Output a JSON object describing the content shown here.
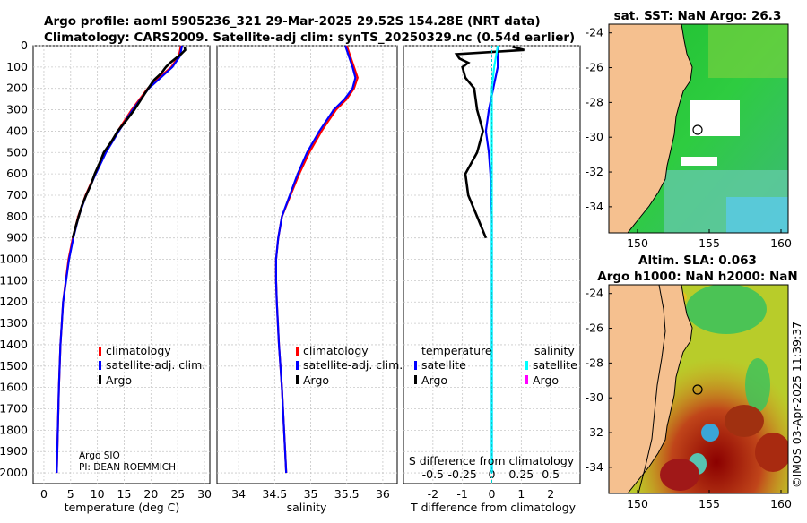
{
  "title": {
    "line1": "Argo profile: aoml 5905236_321 29-Mar-2025 29.52S 154.28E (NRT data)",
    "line2": "Climatology: CARS2009. Satellite-adj clim: synTS_20250329.nc (0.54d earlier)"
  },
  "depth_ticks": [
    "0",
    "100",
    "200",
    "300",
    "400",
    "500",
    "600",
    "700",
    "800",
    "900",
    "1000",
    "1100",
    "1200",
    "1300",
    "1400",
    "1500",
    "1600",
    "1700",
    "1800",
    "1900",
    "2000"
  ],
  "colors": {
    "climatology": "#ff0000",
    "satellite_adj": "#0000ff",
    "argo": "#000000",
    "sat_sal": "#00ffff",
    "argo_sal": "#ff00ff",
    "land": "#f5c08f"
  },
  "chart_data": [
    {
      "type": "line",
      "name": "temperature",
      "xlabel": "temperature (deg C)",
      "xlim": [
        -2,
        31
      ],
      "x_ticks": [
        0,
        5,
        10,
        15,
        20,
        25,
        30
      ],
      "ylim": [
        2050,
        0
      ],
      "legend": [
        "climatology",
        "satellite-adj. clim.",
        "Argo"
      ],
      "legend_position": "lower-right",
      "annotations": [
        "Argo SIO",
        "PI: DEAN ROEMMICH"
      ],
      "series": [
        {
          "name": "climatology",
          "depth": [
            0,
            50,
            100,
            150,
            200,
            300,
            400,
            500,
            600,
            700,
            800,
            900,
            1000,
            1200,
            1400,
            1600,
            1800,
            2000
          ],
          "values": [
            25.6,
            25.2,
            23.8,
            21.5,
            19.4,
            16.4,
            13.8,
            11.4,
            9.6,
            7.8,
            6.4,
            5.4,
            4.6,
            3.6,
            3.1,
            2.8,
            2.6,
            2.4
          ]
        },
        {
          "name": "satellite-adj. clim.",
          "depth": [
            0,
            50,
            100,
            150,
            200,
            300,
            400,
            500,
            600,
            700,
            800,
            900,
            1000,
            1200,
            1400,
            1600,
            1800,
            2000
          ],
          "values": [
            25.8,
            25.4,
            24.0,
            21.8,
            19.6,
            16.6,
            14.0,
            11.6,
            9.7,
            7.9,
            6.5,
            5.5,
            4.7,
            3.6,
            3.1,
            2.8,
            2.6,
            2.4
          ]
        },
        {
          "name": "Argo",
          "depth": [
            5,
            20,
            40,
            60,
            80,
            100,
            130,
            160,
            200,
            250,
            300,
            350,
            400,
            450,
            500,
            550,
            600,
            650,
            700,
            750,
            800,
            850,
            900
          ],
          "values": [
            26.3,
            26.4,
            25.6,
            24.6,
            23.6,
            22.8,
            21.9,
            20.6,
            19.5,
            18.2,
            16.9,
            15.4,
            13.8,
            12.6,
            11.2,
            10.4,
            9.5,
            8.8,
            7.9,
            7.1,
            6.5,
            5.9,
            5.4
          ]
        }
      ]
    },
    {
      "type": "line",
      "name": "salinity",
      "xlabel": "salinity",
      "xlim": [
        33.7,
        36.2
      ],
      "x_ticks": [
        34,
        34.5,
        35,
        35.5,
        36
      ],
      "ylim": [
        2050,
        0
      ],
      "legend": [
        "climatology",
        "satellite-adj. clim.",
        "Argo"
      ],
      "legend_position": "lower-right",
      "series": [
        {
          "name": "climatology",
          "depth": [
            0,
            50,
            100,
            150,
            200,
            250,
            300,
            400,
            500,
            600,
            700,
            800,
            900,
            1000,
            1100,
            1200,
            1400,
            1600,
            1800,
            2000
          ],
          "values": [
            35.5,
            35.55,
            35.6,
            35.65,
            35.6,
            35.5,
            35.35,
            35.15,
            34.98,
            34.84,
            34.72,
            34.6,
            34.55,
            34.52,
            34.52,
            34.53,
            34.56,
            34.6,
            34.63,
            34.66
          ]
        },
        {
          "name": "satellite-adj. clim.",
          "depth": [
            0,
            50,
            100,
            150,
            200,
            250,
            300,
            400,
            500,
            600,
            700,
            800,
            900,
            1000,
            1100,
            1200,
            1400,
            1600,
            1800,
            2000
          ],
          "values": [
            35.48,
            35.53,
            35.58,
            35.62,
            35.58,
            35.47,
            35.32,
            35.12,
            34.95,
            34.82,
            34.71,
            34.6,
            34.55,
            34.52,
            34.52,
            34.53,
            34.56,
            34.6,
            34.63,
            34.66
          ]
        }
      ]
    },
    {
      "type": "line",
      "name": "difference from climatology",
      "xlabel": "T difference from climatology",
      "x2label": "S difference from climatology",
      "xlim": [
        -3,
        3
      ],
      "x_ticks": [
        -2,
        -1,
        0,
        1,
        2
      ],
      "s_ticks": [
        "-0.5",
        "-0.25",
        "0",
        "0.25",
        "0.5"
      ],
      "s_xlim": [
        -0.75,
        0.75
      ],
      "ylim": [
        2050,
        0
      ],
      "legend_groups": {
        "temperature": [
          "satellite",
          "Argo"
        ],
        "salinity": [
          "satellite",
          "Argo"
        ]
      },
      "series": [
        {
          "name": "temperature satellite",
          "depth": [
            0,
            100,
            200,
            300,
            400,
            500,
            600,
            800,
            1000,
            1500,
            2000
          ],
          "values": [
            0.2,
            0.2,
            0.05,
            -0.1,
            -0.2,
            -0.1,
            -0.05,
            0,
            0,
            0,
            0
          ]
        },
        {
          "name": "temperature Argo",
          "depth": [
            5,
            20,
            40,
            60,
            80,
            100,
            150,
            200,
            300,
            400,
            500,
            600,
            700,
            800,
            900
          ],
          "values": [
            0.7,
            1.1,
            -1.2,
            -1.1,
            -0.8,
            -1.0,
            -0.9,
            -0.6,
            -0.5,
            -0.3,
            -0.5,
            -0.9,
            -0.8,
            -0.5,
            -0.2
          ]
        },
        {
          "name": "salinity satellite",
          "depth": [
            0,
            100,
            200,
            500,
            1000,
            1500,
            2000
          ],
          "values": [
            0.05,
            0.02,
            0.0,
            0.0,
            0.0,
            0.0,
            0.0
          ]
        }
      ]
    },
    {
      "type": "heatmap",
      "name": "satellite SST map",
      "title": "sat. SST: NaN Argo: 26.3",
      "x_ticks": [
        150,
        155,
        160
      ],
      "y_ticks": [
        -24,
        -26,
        -28,
        -30,
        -32,
        -34
      ],
      "xlim": [
        148,
        160.5
      ],
      "ylim": [
        -35.5,
        -23.5
      ],
      "argo_position": {
        "lon": 154.28,
        "lat": -29.52
      }
    },
    {
      "type": "heatmap",
      "name": "altimetry SLA map",
      "title_line1": "Altim. SLA: 0.063",
      "title_line2": "Argo h1000: NaN h2000: NaN",
      "x_ticks": [
        150,
        155,
        160
      ],
      "y_ticks": [
        -24,
        -26,
        -28,
        -30,
        -32,
        -34
      ],
      "xlim": [
        148,
        160.5
      ],
      "ylim": [
        -35.5,
        -23.5
      ],
      "argo_position": {
        "lon": 154.28,
        "lat": -29.52
      }
    }
  ],
  "legend_text": {
    "climatology": "climatology",
    "satellite_adj": "satellite-adj. clim.",
    "argo": "Argo",
    "temperature": "temperature",
    "salinity": "salinity",
    "satellite": "satellite"
  },
  "annotations": {
    "argo_sio": "Argo SIO",
    "pi": "PI: DEAN ROEMMICH"
  },
  "footer": "©IMOS 03-Apr-2025 11:39:37"
}
